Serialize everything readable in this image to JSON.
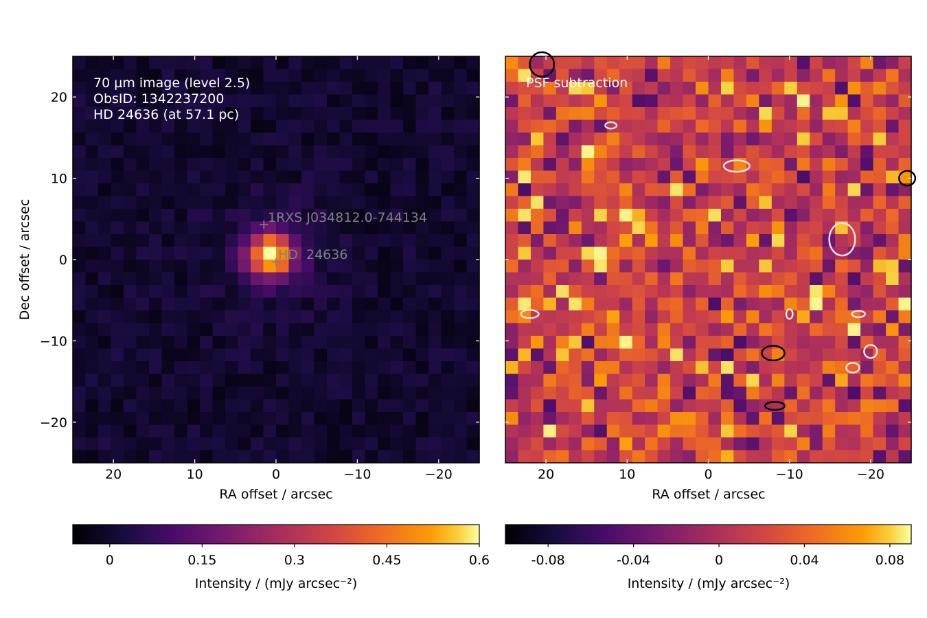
{
  "chart_data": [
    {
      "type": "heatmap",
      "panel": "left",
      "colormap": "inferno",
      "annotation_lines": [
        "70 µm image (level 2.5)",
        "ObsID: 1342237200",
        "HD 24636 (at 57.1 pc)"
      ],
      "annotation_color": "#ffffff",
      "xlabel": "RA offset / arcsec",
      "ylabel": "Dec offset / arcsec",
      "xlim": [
        25,
        -25
      ],
      "ylim": [
        -25,
        25
      ],
      "xticks": [
        20,
        10,
        0,
        -10,
        -20
      ],
      "yticks": [
        20,
        10,
        0,
        -10,
        -20
      ],
      "xtick_labels": [
        "20",
        "10",
        "0",
        "−10",
        "−20"
      ],
      "ytick_labels": [
        "20",
        "10",
        "0",
        "−10",
        "−20"
      ],
      "pixel_size_arcsec": 1.6,
      "markers": [
        {
          "label": "1RXS J034812.0-744134",
          "x": 1.5,
          "y": 4.3
        },
        {
          "label": "HD  24636",
          "x": 0.0,
          "y": -0.3
        }
      ],
      "marker_color": "#808080",
      "source_peak": {
        "x": 0.0,
        "y": 0.0,
        "value": 0.6
      },
      "colorbar": {
        "label": "Intensity / (mJy arcsec⁻²)",
        "range": [
          -0.06,
          0.6
        ],
        "ticks": [
          0,
          0.15,
          0.3,
          0.45,
          0.6
        ],
        "tick_labels": [
          "0",
          "0.15",
          "0.3",
          "0.45",
          "0.6"
        ]
      }
    },
    {
      "type": "heatmap",
      "panel": "right",
      "colormap": "inferno",
      "title": "PSF subtraction",
      "title_color": "#ffffff",
      "xlabel": "RA offset / arcsec",
      "xlim": [
        25,
        -25
      ],
      "ylim": [
        -25,
        25
      ],
      "xticks": [
        20,
        10,
        0,
        -10,
        -20
      ],
      "xtick_labels": [
        "20",
        "10",
        "0",
        "−10",
        "−20"
      ],
      "pixel_size_arcsec": 1.6,
      "contours": {
        "positive_color": "#000000",
        "negative_color": "#e0e0e8",
        "positive": [
          {
            "x": 20.5,
            "y": 24.0,
            "rx": 1.5,
            "ry": 1.5
          },
          {
            "x": -8.0,
            "y": -11.5,
            "rx": 1.4,
            "ry": 0.9
          },
          {
            "x": -8.2,
            "y": -18.0,
            "rx": 1.2,
            "ry": 0.5
          },
          {
            "x": -24.5,
            "y": 10.0,
            "rx": 1.0,
            "ry": 0.9
          }
        ],
        "negative": [
          {
            "x": 12.0,
            "y": 16.5,
            "rx": 0.7,
            "ry": 0.4
          },
          {
            "x": -3.5,
            "y": 11.5,
            "rx": 1.6,
            "ry": 0.7
          },
          {
            "x": -16.5,
            "y": 2.5,
            "rx": 1.6,
            "ry": 2.0
          },
          {
            "x": 22.0,
            "y": -6.7,
            "rx": 1.1,
            "ry": 0.5
          },
          {
            "x": -10.0,
            "y": -6.7,
            "rx": 0.4,
            "ry": 0.6
          },
          {
            "x": -18.5,
            "y": -6.7,
            "rx": 0.8,
            "ry": 0.4
          },
          {
            "x": -20.0,
            "y": -11.3,
            "rx": 0.8,
            "ry": 0.8
          },
          {
            "x": -17.8,
            "y": -13.3,
            "rx": 0.8,
            "ry": 0.6
          }
        ]
      },
      "colorbar": {
        "label": "Intensity / (mJy arcsec⁻²)",
        "range": [
          -0.1,
          0.09
        ],
        "ticks": [
          -0.08,
          -0.04,
          0,
          0.04,
          0.08
        ],
        "tick_labels": [
          "-0.08",
          "-0.04",
          "0",
          "0.04",
          "0.08"
        ]
      }
    }
  ]
}
